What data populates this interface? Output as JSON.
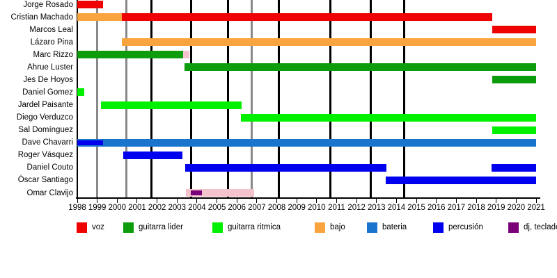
{
  "chart_data": {
    "type": "timeline",
    "description": "Band members timeline (Gantt-style) with roles by color, years 1998-2021",
    "x_axis": {
      "start_year": 1998,
      "end_year": 2021,
      "tick_years": [
        1998,
        1999,
        2000,
        2001,
        2002,
        2003,
        2004,
        2005,
        2006,
        2007,
        2008,
        2009,
        2010,
        2011,
        2012,
        2013,
        2014,
        2015,
        2016,
        2017,
        2018,
        2019,
        2020,
        2021
      ]
    },
    "role_colors": {
      "voz": "#ee0202",
      "guitarra lider": "#0c9c0c",
      "guitarra ritmica": "#00f000",
      "bajo": "#f9a43f",
      "bateria": "#1874cd",
      "percusión": "#0000ee",
      "dj, teclado": "#7a007a",
      "sesión": "#f5c3cb"
    },
    "grid_colors": {
      "major": "#000000",
      "minor": "#888888"
    },
    "event_lines": {
      "black_years": [
        2001.7,
        2003.7,
        2005.55,
        2008.1,
        2010.7,
        2012.7,
        2014.4
      ],
      "gray_years": [
        1999.0,
        2000.45,
        2006.75
      ]
    },
    "members": [
      {
        "name": "Jorge Rosado",
        "segments": [
          {
            "role": "voz",
            "start": 1998.0,
            "end": 1999.3
          }
        ]
      },
      {
        "name": "Cristian Machado",
        "segments": [
          {
            "role": "bajo",
            "start": 1998.0,
            "end": 2000.25
          },
          {
            "role": "voz",
            "start": 2000.25,
            "end": 2018.8
          }
        ]
      },
      {
        "name": "Marcos Leal",
        "segments": [
          {
            "role": "voz",
            "start": 2018.8,
            "end": 2021.0
          }
        ]
      },
      {
        "name": "Lázaro Pina",
        "segments": [
          {
            "role": "bajo",
            "start": 2000.25,
            "end": 2021.0
          }
        ]
      },
      {
        "name": "Marc Rizzo",
        "segments": [
          {
            "role": "guitarra lider",
            "start": 1998.0,
            "end": 2003.3
          },
          {
            "role": "sesión",
            "start": 2003.3,
            "end": 2003.62
          }
        ]
      },
      {
        "name": "Ahrue Luster",
        "segments": [
          {
            "role": "guitarra lider",
            "start": 2003.38,
            "end": 2021.0
          }
        ]
      },
      {
        "name": "Jes De Hoyos",
        "segments": [
          {
            "role": "guitarra lider",
            "start": 2018.8,
            "end": 2021.0
          }
        ]
      },
      {
        "name": "Daniel Gomez",
        "segments": [
          {
            "role": "guitarra ritmica",
            "start": 1998.0,
            "end": 1998.35
          }
        ]
      },
      {
        "name": "Jardel Paisante",
        "segments": [
          {
            "role": "guitarra ritmica",
            "start": 1999.2,
            "end": 2006.25
          }
        ]
      },
      {
        "name": "Diego Verduzco",
        "segments": [
          {
            "role": "guitarra ritmica",
            "start": 2006.2,
            "end": 2021.0
          }
        ]
      },
      {
        "name": "Sal Domínguez",
        "segments": [
          {
            "role": "guitarra ritmica",
            "start": 2018.8,
            "end": 2021.0
          }
        ]
      },
      {
        "name": "Dave Chavarri",
        "segments": [
          {
            "role": "bateria",
            "start": 1998.0,
            "end": 2021.0
          }
        ],
        "overlays": [
          {
            "role": "percusión",
            "start": 1998.0,
            "end": 1999.3
          }
        ]
      },
      {
        "name": "Roger Vásquez",
        "segments": [
          {
            "role": "percusión",
            "start": 2000.3,
            "end": 2003.27
          }
        ]
      },
      {
        "name": "Daniel Couto",
        "segments": [
          {
            "role": "percusión",
            "start": 2003.4,
            "end": 2013.5
          },
          {
            "role": "percusión",
            "start": 2018.75,
            "end": 2021.0
          }
        ]
      },
      {
        "name": "Óscar Santiago",
        "segments": [
          {
            "role": "percusión",
            "start": 2013.45,
            "end": 2021.0
          }
        ]
      },
      {
        "name": "Omar Clavijo",
        "segments": [
          {
            "role": "sesión",
            "start": 2003.45,
            "end": 2006.85
          }
        ],
        "overlays": [
          {
            "role": "dj, teclado",
            "start": 2003.7,
            "end": 2004.25
          }
        ]
      }
    ],
    "legend": [
      {
        "label": "voz",
        "role": "voz"
      },
      {
        "label": "guitarra lider",
        "role": "guitarra lider"
      },
      {
        "label": "guitarra ritmica",
        "role": "guitarra ritmica"
      },
      {
        "label": "bajo",
        "role": "bajo"
      },
      {
        "label": "bateria",
        "role": "bateria"
      },
      {
        "label": "percusión",
        "role": "percusión"
      },
      {
        "label": "dj, teclado",
        "role": "dj, teclado"
      }
    ]
  }
}
